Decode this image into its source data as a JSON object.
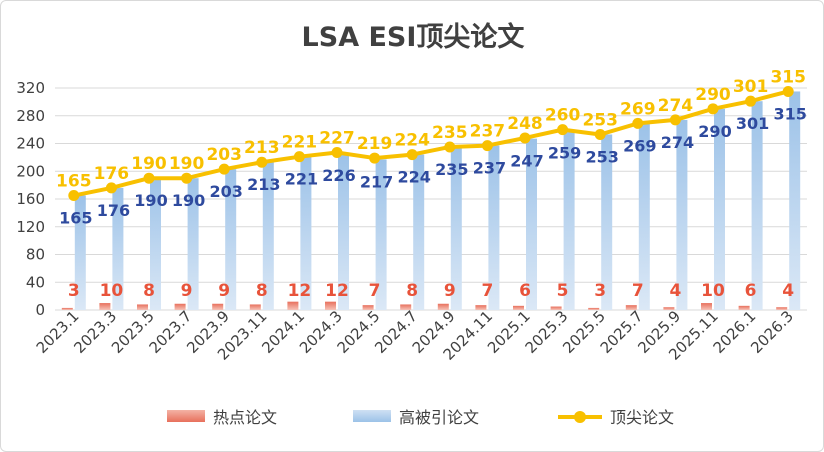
{
  "chart_data": {
    "type": "bar+line",
    "title": "LSA ESI顶尖论文",
    "categories": [
      "2023.1",
      "2023.3",
      "2023.5",
      "2023.7",
      "2023.9",
      "2023.11",
      "2024.1",
      "2024.3",
      "2024.5",
      "2024.7",
      "2024.9",
      "2024.11",
      "2025.1",
      "2025.3",
      "2025.5",
      "2025.7",
      "2025.9",
      "2025.11",
      "2026.1",
      "2026.3"
    ],
    "series": [
      {
        "name": "热点论文",
        "kind": "bar",
        "values": [
          3,
          10,
          8,
          9,
          9,
          8,
          12,
          12,
          7,
          8,
          9,
          7,
          6,
          5,
          3,
          7,
          4,
          10,
          6,
          4
        ],
        "label_color": "#e8533a"
      },
      {
        "name": "高被引论文",
        "kind": "bar",
        "values": [
          165,
          176,
          190,
          190,
          203,
          213,
          221,
          226,
          217,
          224,
          235,
          237,
          247,
          259,
          253,
          269,
          274,
          290,
          301,
          315
        ],
        "label_color": "#2e4a9e"
      },
      {
        "name": "顶尖论文",
        "kind": "line",
        "values": [
          165,
          176,
          190,
          190,
          203,
          213,
          221,
          227,
          219,
          224,
          235,
          237,
          248,
          260,
          253,
          269,
          274,
          290,
          301,
          315
        ],
        "label_color": "#f8c000"
      }
    ],
    "y_ticks": [
      0,
      40,
      80,
      120,
      160,
      200,
      240,
      280,
      320
    ],
    "ylim": [
      0,
      320
    ],
    "grid": true,
    "legend_position": "bottom"
  },
  "colors": {
    "hot": "#e8705c",
    "high": "#9cc2e8",
    "top": "#f8c000",
    "grid": "#d9d9d9",
    "axis_text": "#404040"
  }
}
